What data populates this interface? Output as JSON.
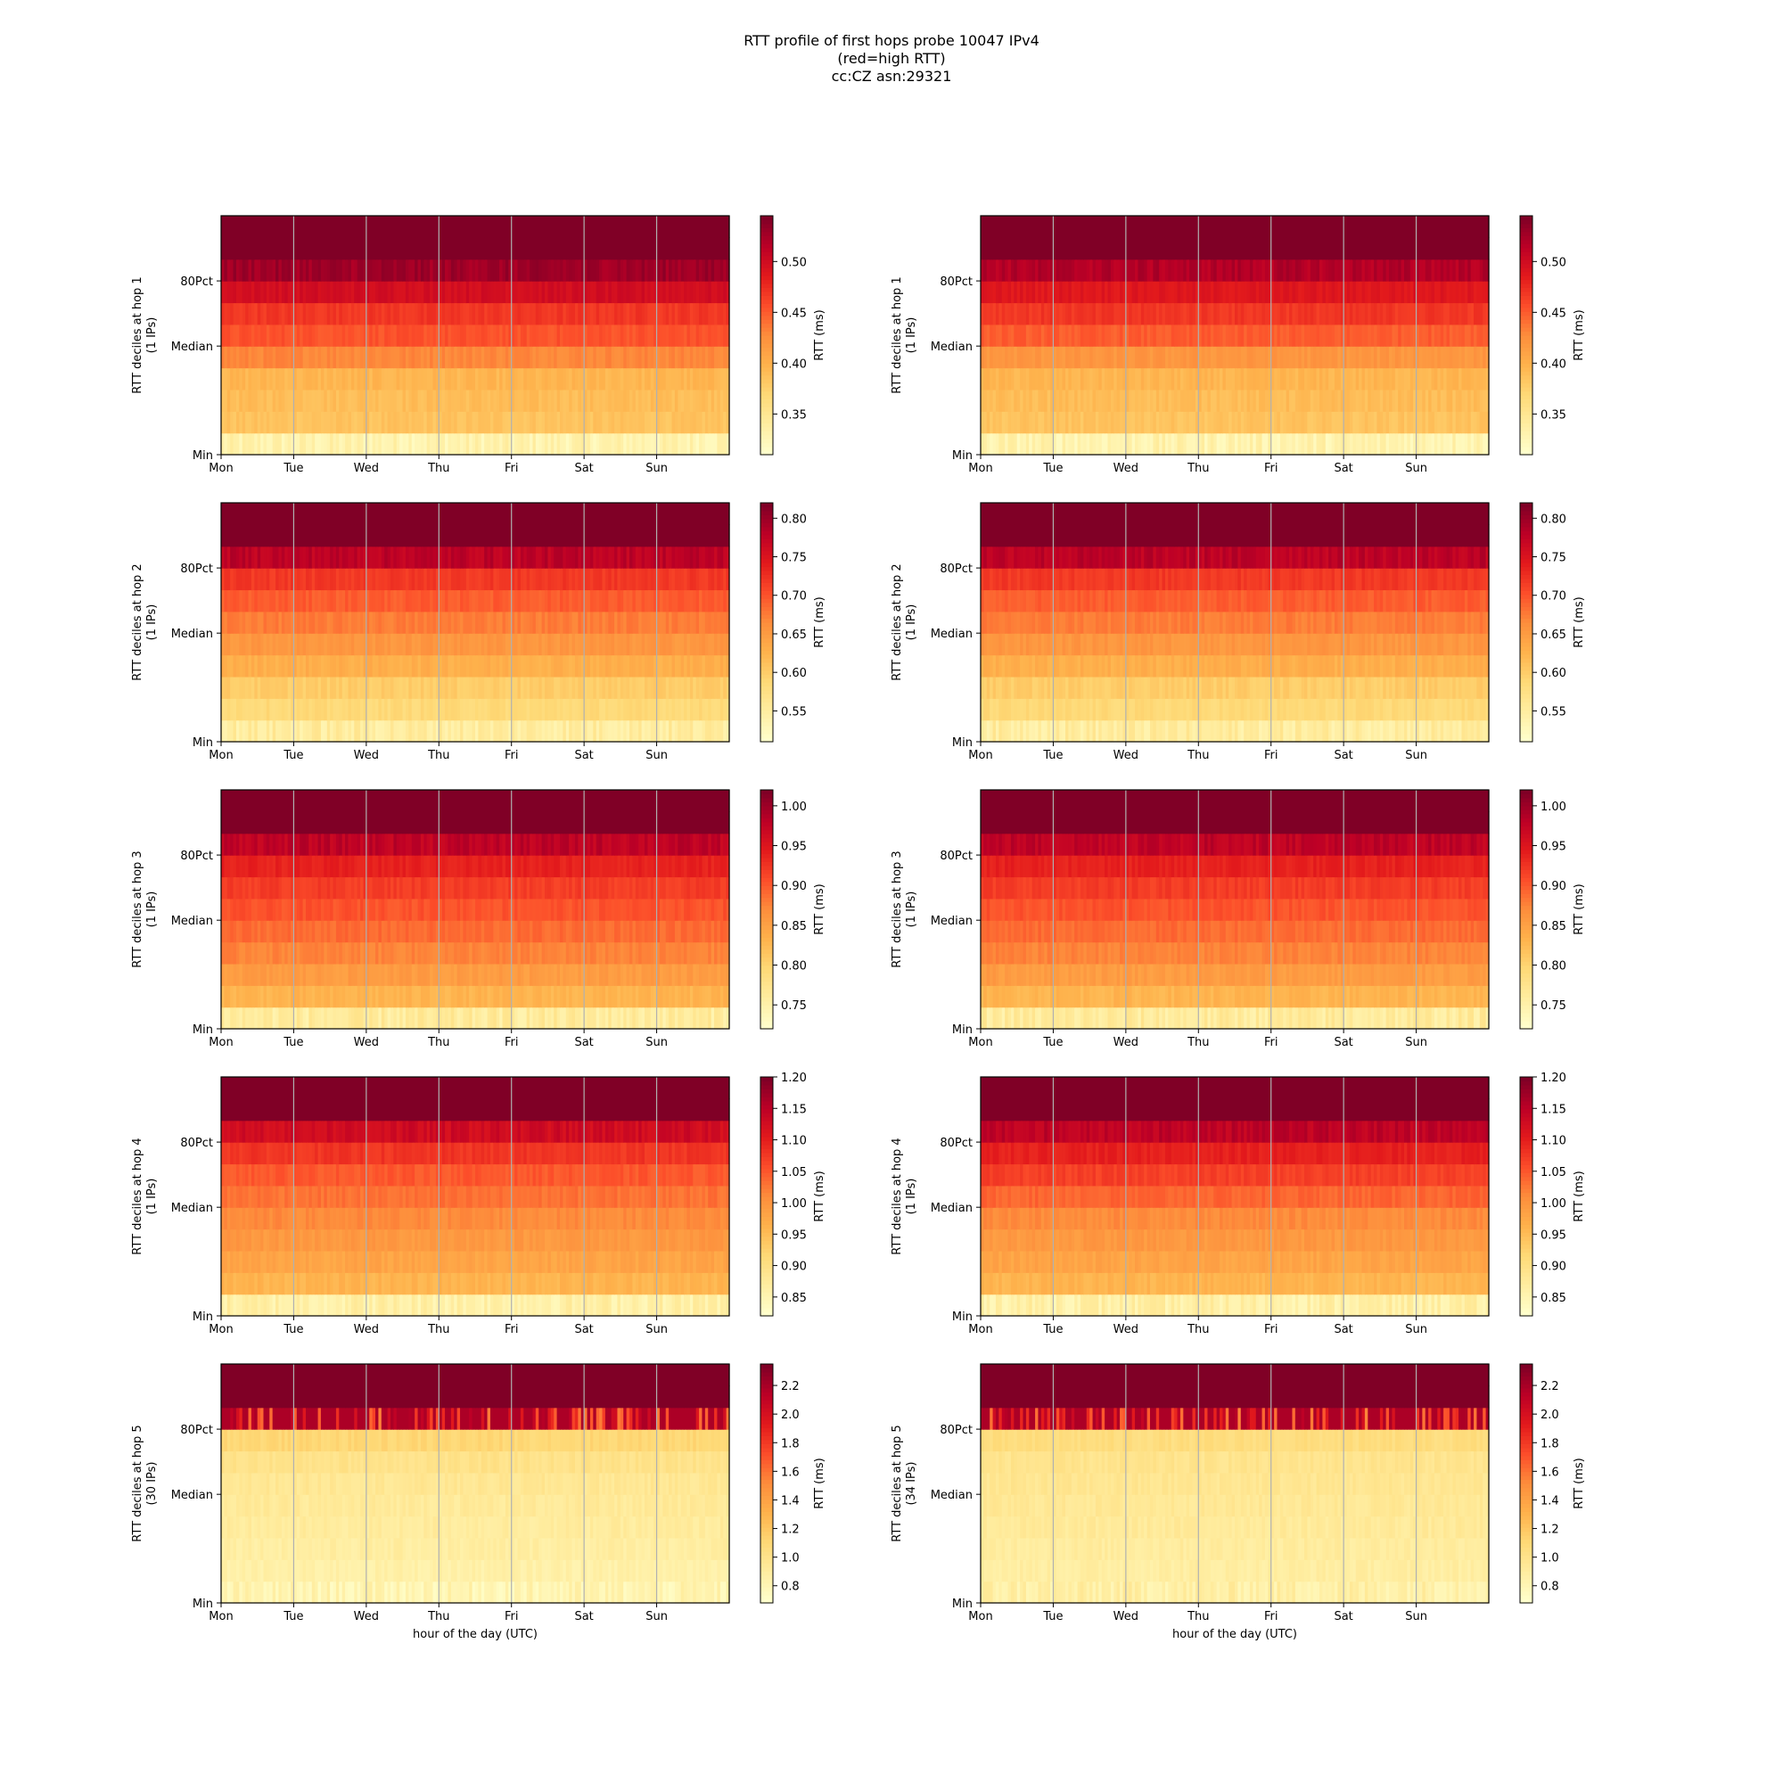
{
  "figure": {
    "title_lines": [
      "RTT profile of first hops probe 10047 IPv4",
      "(red=high RTT)",
      "cc:CZ asn:29321"
    ]
  },
  "chart_data": [
    {
      "type": "heatmap",
      "hop": 1,
      "ylabel": [
        "RTT deciles at hop 1",
        "(1 IPs)"
      ],
      "yticks": [
        "Min",
        "Median",
        "80Pct"
      ],
      "xticks": [
        "Mon",
        "Tue",
        "Wed",
        "Thu",
        "Fri",
        "Sat",
        "Sun"
      ],
      "xlabel": "",
      "colorbar": {
        "label": "RTT (ms)",
        "range": [
          0.31,
          0.545
        ],
        "ticks": [
          0.35,
          0.4,
          0.45,
          0.5
        ],
        "scale": "YlOrRd"
      },
      "decile_medians_ms": [
        0.33,
        0.385,
        0.39,
        0.395,
        0.43,
        0.455,
        0.47,
        0.5,
        0.53,
        0.545
      ],
      "grid": true
    },
    {
      "type": "heatmap",
      "hop": 1,
      "ylabel": [
        "RTT deciles at hop 1",
        "(1 IPs)"
      ],
      "yticks": [
        "Min",
        "Median",
        "80Pct"
      ],
      "xticks": [
        "Mon",
        "Tue",
        "Wed",
        "Thu",
        "Fri",
        "Sat",
        "Sun"
      ],
      "xlabel": "",
      "colorbar": {
        "label": "RTT (ms)",
        "range": [
          0.31,
          0.545
        ],
        "ticks": [
          0.35,
          0.4,
          0.45,
          0.5
        ],
        "scale": "YlOrRd"
      },
      "decile_medians_ms": [
        0.33,
        0.385,
        0.39,
        0.395,
        0.42,
        0.45,
        0.47,
        0.49,
        0.52,
        0.545
      ],
      "grid": true
    },
    {
      "type": "heatmap",
      "hop": 2,
      "ylabel": [
        "RTT deciles at hop 2",
        "(1 IPs)"
      ],
      "yticks": [
        "Min",
        "Median",
        "80Pct"
      ],
      "xticks": [
        "Mon",
        "Tue",
        "Wed",
        "Thu",
        "Fri",
        "Sat",
        "Sun"
      ],
      "xlabel": "",
      "colorbar": {
        "label": "RTT (ms)",
        "range": [
          0.51,
          0.82
        ],
        "ticks": [
          0.55,
          0.6,
          0.65,
          0.7,
          0.75,
          0.8
        ],
        "scale": "YlOrRd"
      },
      "decile_medians_ms": [
        0.55,
        0.585,
        0.6,
        0.63,
        0.655,
        0.675,
        0.695,
        0.72,
        0.78,
        0.82
      ],
      "grid": true
    },
    {
      "type": "heatmap",
      "hop": 2,
      "ylabel": [
        "RTT deciles at hop 2",
        "(1 IPs)"
      ],
      "yticks": [
        "Min",
        "Median",
        "80Pct"
      ],
      "xticks": [
        "Mon",
        "Tue",
        "Wed",
        "Thu",
        "Fri",
        "Sat",
        "Sun"
      ],
      "xlabel": "",
      "colorbar": {
        "label": "RTT (ms)",
        "range": [
          0.51,
          0.82
        ],
        "ticks": [
          0.55,
          0.6,
          0.65,
          0.7,
          0.75,
          0.8
        ],
        "scale": "YlOrRd"
      },
      "decile_medians_ms": [
        0.55,
        0.585,
        0.6,
        0.63,
        0.655,
        0.675,
        0.695,
        0.72,
        0.78,
        0.82
      ],
      "grid": true
    },
    {
      "type": "heatmap",
      "hop": 3,
      "ylabel": [
        "RTT deciles at hop 3",
        "(1 IPs)"
      ],
      "yticks": [
        "Min",
        "Median",
        "80Pct"
      ],
      "xticks": [
        "Mon",
        "Tue",
        "Wed",
        "Thu",
        "Fri",
        "Sat",
        "Sun"
      ],
      "xlabel": "",
      "colorbar": {
        "label": "RTT (ms)",
        "range": [
          0.72,
          1.02
        ],
        "ticks": [
          0.75,
          0.8,
          0.85,
          0.9,
          0.95,
          1.0
        ],
        "scale": "YlOrRd"
      },
      "decile_medians_ms": [
        0.76,
        0.83,
        0.855,
        0.875,
        0.89,
        0.905,
        0.92,
        0.94,
        0.98,
        1.02
      ],
      "grid": true
    },
    {
      "type": "heatmap",
      "hop": 3,
      "ylabel": [
        "RTT deciles at hop 3",
        "(1 IPs)"
      ],
      "yticks": [
        "Min",
        "Median",
        "80Pct"
      ],
      "xticks": [
        "Mon",
        "Tue",
        "Wed",
        "Thu",
        "Fri",
        "Sat",
        "Sun"
      ],
      "xlabel": "",
      "colorbar": {
        "label": "RTT (ms)",
        "range": [
          0.72,
          1.02
        ],
        "ticks": [
          0.75,
          0.8,
          0.85,
          0.9,
          0.95,
          1.0
        ],
        "scale": "YlOrRd"
      },
      "decile_medians_ms": [
        0.76,
        0.83,
        0.855,
        0.875,
        0.89,
        0.905,
        0.92,
        0.94,
        0.98,
        1.02
      ],
      "grid": true
    },
    {
      "type": "heatmap",
      "hop": 4,
      "ylabel": [
        "RTT deciles at hop 4",
        "(1 IPs)"
      ],
      "yticks": [
        "Min",
        "Median",
        "80Pct"
      ],
      "xticks": [
        "Mon",
        "Tue",
        "Wed",
        "Thu",
        "Fri",
        "Sat",
        "Sun"
      ],
      "xlabel": "",
      "colorbar": {
        "label": "RTT (ms)",
        "range": [
          0.82,
          1.2
        ],
        "ticks": [
          0.85,
          0.9,
          0.95,
          1.0,
          1.05,
          1.1,
          1.15,
          1.2
        ],
        "scale": "YlOrRd"
      },
      "decile_medians_ms": [
        0.86,
        0.96,
        0.98,
        0.995,
        1.01,
        1.03,
        1.05,
        1.08,
        1.13,
        1.2
      ],
      "grid": true
    },
    {
      "type": "heatmap",
      "hop": 4,
      "ylabel": [
        "RTT deciles at hop 4",
        "(1 IPs)"
      ],
      "yticks": [
        "Min",
        "Median",
        "80Pct"
      ],
      "xticks": [
        "Mon",
        "Tue",
        "Wed",
        "Thu",
        "Fri",
        "Sat",
        "Sun"
      ],
      "xlabel": "",
      "colorbar": {
        "label": "RTT (ms)",
        "range": [
          0.82,
          1.2
        ],
        "ticks": [
          0.85,
          0.9,
          0.95,
          1.0,
          1.05,
          1.1,
          1.15,
          1.2
        ],
        "scale": "YlOrRd"
      },
      "decile_medians_ms": [
        0.86,
        0.96,
        0.98,
        0.995,
        1.01,
        1.04,
        1.07,
        1.1,
        1.15,
        1.2
      ],
      "grid": true
    },
    {
      "type": "heatmap",
      "hop": 5,
      "ylabel": [
        "RTT deciles at hop 5",
        "(30 IPs)"
      ],
      "yticks": [
        "Min",
        "Median",
        "80Pct"
      ],
      "xticks": [
        "Mon",
        "Tue",
        "Wed",
        "Thu",
        "Fri",
        "Sat",
        "Sun"
      ],
      "xlabel": "hour of the day (UTC)",
      "colorbar": {
        "label": "RTT (ms)",
        "range": [
          0.68,
          2.35
        ],
        "ticks": [
          0.8,
          1.0,
          1.2,
          1.4,
          1.6,
          1.8,
          2.0,
          2.2
        ],
        "scale": "YlOrRd"
      },
      "decile_medians_ms": [
        0.8,
        0.85,
        0.88,
        0.9,
        0.92,
        0.95,
        1.0,
        1.1,
        2.2,
        2.35
      ],
      "grid": true
    },
    {
      "type": "heatmap",
      "hop": 5,
      "ylabel": [
        "RTT deciles at hop 5",
        "(34 IPs)"
      ],
      "yticks": [
        "Min",
        "Median",
        "80Pct"
      ],
      "xticks": [
        "Mon",
        "Tue",
        "Wed",
        "Thu",
        "Fri",
        "Sat",
        "Sun"
      ],
      "xlabel": "hour of the day (UTC)",
      "colorbar": {
        "label": "RTT (ms)",
        "range": [
          0.68,
          2.35
        ],
        "ticks": [
          0.8,
          1.0,
          1.2,
          1.4,
          1.6,
          1.8,
          2.0,
          2.2
        ],
        "scale": "YlOrRd"
      },
      "decile_medians_ms": [
        0.86,
        0.88,
        0.9,
        0.92,
        0.94,
        0.96,
        0.98,
        1.05,
        2.2,
        2.35
      ],
      "grid": true
    }
  ]
}
